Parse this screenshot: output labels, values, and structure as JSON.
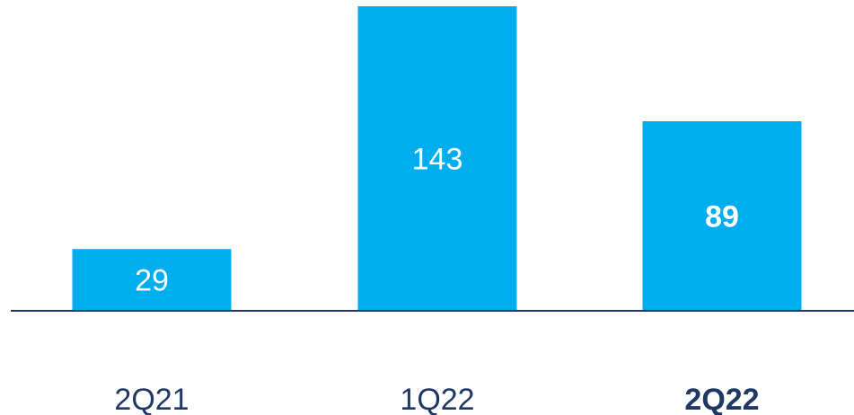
{
  "chart_data": {
    "type": "bar",
    "categories": [
      "2Q21",
      "1Q22",
      "2Q22"
    ],
    "values": [
      29,
      143,
      89
    ],
    "data_labels": [
      "29",
      "143",
      "89"
    ],
    "highlighted_category": "2Q22",
    "title": "",
    "xlabel": "",
    "ylabel": "",
    "ylim": [
      0,
      143
    ],
    "grid": false,
    "legend": "none",
    "colors": {
      "bar": "#00adef",
      "axis": "#1f3864",
      "category_text": "#1f3864",
      "highlight_text": "#00adef",
      "data_label_text": "#ffffff"
    }
  }
}
